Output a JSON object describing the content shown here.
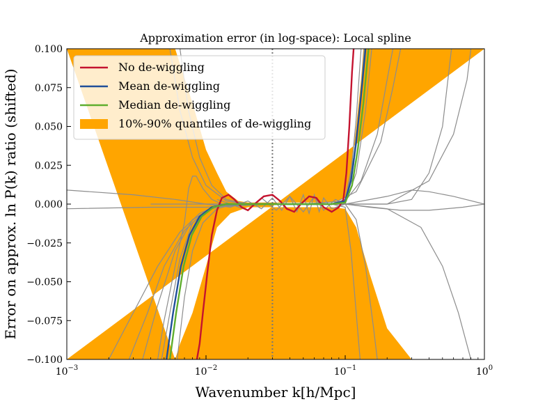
{
  "chart_data": {
    "type": "line",
    "title": "Approximation error (in log-space): Local spline",
    "xlabel": "Wavenumber k[h/Mpc]",
    "ylabel": "Error on approx. ln P(k) ratio (shifted)",
    "xscale": "log",
    "xlim": [
      0.001,
      1
    ],
    "ylim": [
      -0.1,
      0.1
    ],
    "x_ticks": [
      "10^-3",
      "10^-2",
      "10^-1",
      "10^0"
    ],
    "y_ticks": [
      "-0.100",
      "-0.075",
      "-0.050",
      "-0.025",
      "0.000",
      "0.025",
      "0.050",
      "0.075",
      "0.100"
    ],
    "vline_x": 0.03,
    "legend_position": "upper-left",
    "colors": {
      "no_dewiggle": "#c4132f",
      "mean": "#1f4e99",
      "median": "#5fae2e",
      "band": "#ffa500",
      "samples": "#8c8c8c",
      "vline": "#777777"
    },
    "band_upper": [
      [
        0.001,
        0.1
      ],
      [
        0.006,
        0.1
      ],
      [
        0.008,
        0.065
      ],
      [
        0.01,
        0.035
      ],
      [
        0.012,
        0.02
      ],
      [
        0.014,
        0.008
      ],
      [
        0.017,
        0.002
      ],
      [
        0.02,
        0.001
      ],
      [
        0.03,
        0.001
      ],
      [
        0.05,
        0.001
      ],
      [
        0.08,
        0.001
      ],
      [
        0.1,
        0.004
      ],
      [
        0.11,
        0.02
      ],
      [
        0.12,
        0.05
      ],
      [
        0.13,
        0.08
      ],
      [
        0.135,
        0.1
      ],
      [
        1,
        0.1
      ]
    ],
    "band_lower": [
      [
        0.001,
        -0.1
      ],
      [
        1,
        -0.1
      ],
      [
        0.3,
        -0.1
      ],
      [
        0.2,
        -0.08
      ],
      [
        0.15,
        -0.045
      ],
      [
        0.12,
        -0.015
      ],
      [
        0.1,
        -0.003
      ],
      [
        0.08,
        -0.002
      ],
      [
        0.05,
        -0.002
      ],
      [
        0.03,
        -0.002
      ],
      [
        0.02,
        -0.002
      ],
      [
        0.015,
        -0.006
      ],
      [
        0.012,
        -0.015
      ],
      [
        0.01,
        -0.04
      ],
      [
        0.008,
        -0.07
      ],
      [
        0.0065,
        -0.09
      ],
      [
        0.006,
        -0.1
      ]
    ],
    "series": [
      {
        "name": "No de-wiggling",
        "key": "no_dewiggle",
        "points": [
          [
            0.0086,
            -0.1
          ],
          [
            0.009,
            -0.09
          ],
          [
            0.0095,
            -0.07
          ],
          [
            0.0102,
            -0.045
          ],
          [
            0.011,
            -0.02
          ],
          [
            0.012,
            -0.004
          ],
          [
            0.013,
            0.004
          ],
          [
            0.0145,
            0.006
          ],
          [
            0.016,
            0.003
          ],
          [
            0.018,
            -0.002
          ],
          [
            0.02,
            -0.004
          ],
          [
            0.023,
            0.001
          ],
          [
            0.026,
            0.005
          ],
          [
            0.03,
            0.006
          ],
          [
            0.034,
            0.002
          ],
          [
            0.038,
            -0.003
          ],
          [
            0.043,
            -0.005
          ],
          [
            0.048,
            0.0
          ],
          [
            0.055,
            0.005
          ],
          [
            0.062,
            0.004
          ],
          [
            0.07,
            -0.002
          ],
          [
            0.08,
            -0.005
          ],
          [
            0.09,
            -0.002
          ],
          [
            0.097,
            0.003
          ],
          [
            0.102,
            0.02
          ],
          [
            0.107,
            0.05
          ],
          [
            0.112,
            0.085
          ],
          [
            0.115,
            0.1
          ]
        ]
      },
      {
        "name": "Mean de-wiggling",
        "key": "mean",
        "points": [
          [
            0.0052,
            -0.1
          ],
          [
            0.0058,
            -0.07
          ],
          [
            0.0066,
            -0.04
          ],
          [
            0.0076,
            -0.02
          ],
          [
            0.009,
            -0.008
          ],
          [
            0.011,
            -0.002
          ],
          [
            0.014,
            0.0
          ],
          [
            0.02,
            0.0
          ],
          [
            0.03,
            0.0
          ],
          [
            0.05,
            0.0
          ],
          [
            0.08,
            0.0
          ],
          [
            0.1,
            0.002
          ],
          [
            0.11,
            0.015
          ],
          [
            0.12,
            0.04
          ],
          [
            0.13,
            0.07
          ],
          [
            0.14,
            0.1
          ]
        ]
      },
      {
        "name": "Median de-wiggling",
        "key": "median",
        "points": [
          [
            0.0055,
            -0.1
          ],
          [
            0.0061,
            -0.07
          ],
          [
            0.0069,
            -0.04
          ],
          [
            0.0079,
            -0.02
          ],
          [
            0.0093,
            -0.008
          ],
          [
            0.0113,
            -0.002
          ],
          [
            0.014,
            0.0
          ],
          [
            0.02,
            0.0
          ],
          [
            0.03,
            0.0
          ],
          [
            0.05,
            0.0
          ],
          [
            0.08,
            0.0
          ],
          [
            0.1,
            0.001
          ],
          [
            0.112,
            0.012
          ],
          [
            0.123,
            0.035
          ],
          [
            0.135,
            0.065
          ],
          [
            0.147,
            0.1
          ]
        ]
      },
      {
        "name": "10%-90% quantiles of de-wiggling",
        "key": "band"
      }
    ],
    "sample_curves": [
      [
        [
          0.0062,
          -0.1
        ],
        [
          0.007,
          -0.06
        ],
        [
          0.008,
          -0.03
        ],
        [
          0.0095,
          -0.012
        ],
        [
          0.012,
          -0.003
        ],
        [
          0.016,
          0.0
        ],
        [
          0.03,
          0.0
        ],
        [
          0.08,
          0.0
        ],
        [
          0.1,
          0.003
        ],
        [
          0.115,
          0.03
        ],
        [
          0.13,
          0.07
        ],
        [
          0.14,
          0.1
        ]
      ],
      [
        [
          0.0048,
          -0.1
        ],
        [
          0.0055,
          -0.07
        ],
        [
          0.0065,
          -0.035
        ],
        [
          0.008,
          -0.012
        ],
        [
          0.011,
          -0.002
        ],
        [
          0.02,
          0.0
        ],
        [
          0.06,
          0.0
        ],
        [
          0.1,
          0.0
        ],
        [
          0.12,
          0.02
        ],
        [
          0.14,
          0.06
        ],
        [
          0.155,
          0.1
        ]
      ],
      [
        [
          0.002,
          -0.1
        ],
        [
          0.003,
          -0.07
        ],
        [
          0.0045,
          -0.04
        ],
        [
          0.0065,
          -0.018
        ],
        [
          0.009,
          -0.006
        ],
        [
          0.012,
          -0.001
        ],
        [
          0.02,
          0.0
        ],
        [
          0.08,
          0.0
        ],
        [
          0.12,
          0.008
        ],
        [
          0.18,
          0.04
        ],
        [
          0.22,
          0.075
        ],
        [
          0.25,
          0.1
        ]
      ],
      [
        [
          0.0028,
          -0.1
        ],
        [
          0.0038,
          -0.07
        ],
        [
          0.005,
          -0.04
        ],
        [
          0.007,
          -0.017
        ],
        [
          0.01,
          -0.004
        ],
        [
          0.015,
          0.0
        ],
        [
          0.05,
          0.0
        ],
        [
          0.1,
          0.002
        ],
        [
          0.13,
          0.015
        ],
        [
          0.17,
          0.045
        ],
        [
          0.2,
          0.08
        ],
        [
          0.22,
          0.1
        ]
      ],
      [
        [
          0.0035,
          -0.1
        ],
        [
          0.0045,
          -0.065
        ],
        [
          0.006,
          -0.03
        ],
        [
          0.008,
          -0.01
        ],
        [
          0.012,
          -0.001
        ],
        [
          0.03,
          0.0
        ],
        [
          0.1,
          0.0
        ],
        [
          0.12,
          -0.01
        ],
        [
          0.14,
          -0.04
        ],
        [
          0.16,
          -0.08
        ],
        [
          0.17,
          -0.1
        ]
      ],
      [
        [
          0.0045,
          -0.1
        ],
        [
          0.005,
          -0.075
        ],
        [
          0.006,
          -0.04
        ],
        [
          0.007,
          -0.012
        ],
        [
          0.0075,
          0.01
        ],
        [
          0.008,
          0.018
        ],
        [
          0.0085,
          0.018
        ],
        [
          0.0095,
          0.01
        ],
        [
          0.011,
          0.003
        ],
        [
          0.013,
          0.0
        ],
        [
          0.03,
          0.0
        ],
        [
          0.08,
          0.0
        ],
        [
          0.1,
          0.0
        ],
        [
          0.11,
          0.02
        ],
        [
          0.12,
          0.055
        ],
        [
          0.13,
          0.1
        ]
      ],
      [
        [
          0.0055,
          0.1
        ],
        [
          0.0065,
          0.06
        ],
        [
          0.008,
          0.03
        ],
        [
          0.01,
          0.012
        ],
        [
          0.014,
          0.002
        ],
        [
          0.02,
          0.0
        ],
        [
          0.08,
          0.0
        ],
        [
          0.1,
          0.001
        ],
        [
          0.115,
          0.025
        ],
        [
          0.128,
          0.065
        ],
        [
          0.137,
          0.1
        ]
      ],
      [
        [
          0.0065,
          0.1
        ],
        [
          0.0075,
          0.06
        ],
        [
          0.009,
          0.03
        ],
        [
          0.011,
          0.012
        ],
        [
          0.014,
          0.003
        ],
        [
          0.02,
          0.0
        ],
        [
          0.08,
          0.0
        ],
        [
          0.1,
          -0.002
        ],
        [
          0.11,
          -0.03
        ],
        [
          0.12,
          -0.07
        ],
        [
          0.128,
          -0.1
        ]
      ],
      [
        [
          0.001,
          0.009
        ],
        [
          0.003,
          0.006
        ],
        [
          0.006,
          0.003
        ],
        [
          0.01,
          0.0
        ],
        [
          0.03,
          0.0
        ],
        [
          0.1,
          0.0
        ],
        [
          0.2,
          0.005
        ],
        [
          0.3,
          0.009
        ],
        [
          0.4,
          0.008
        ],
        [
          0.6,
          0.005
        ],
        [
          1.0,
          0.0
        ]
      ],
      [
        [
          0.001,
          -0.003
        ],
        [
          0.004,
          -0.002
        ],
        [
          0.01,
          -0.002
        ],
        [
          0.03,
          0.0
        ],
        [
          0.1,
          0.0
        ],
        [
          0.15,
          -0.002
        ],
        [
          0.25,
          -0.004
        ],
        [
          0.4,
          -0.004
        ],
        [
          0.7,
          -0.002
        ],
        [
          1.0,
          0.0
        ]
      ],
      [
        [
          0.01,
          0.0
        ],
        [
          0.015,
          -0.002
        ],
        [
          0.02,
          0.002
        ],
        [
          0.025,
          -0.003
        ],
        [
          0.03,
          0.004
        ],
        [
          0.035,
          -0.004
        ],
        [
          0.04,
          0.005
        ],
        [
          0.045,
          -0.005
        ],
        [
          0.05,
          0.006
        ],
        [
          0.055,
          -0.006
        ],
        [
          0.06,
          0.006
        ],
        [
          0.065,
          -0.005
        ],
        [
          0.07,
          0.004
        ],
        [
          0.08,
          -0.003
        ],
        [
          0.1,
          0.0
        ]
      ],
      [
        [
          0.012,
          0.003
        ],
        [
          0.02,
          -0.004
        ],
        [
          0.025,
          0.004
        ],
        [
          0.032,
          -0.004
        ],
        [
          0.04,
          0.005
        ],
        [
          0.05,
          -0.005
        ],
        [
          0.06,
          0.005
        ],
        [
          0.07,
          -0.004
        ],
        [
          0.085,
          0.003
        ],
        [
          0.1,
          0.0
        ]
      ],
      [
        [
          0.004,
          0.0
        ],
        [
          0.008,
          0.0
        ],
        [
          0.01,
          0.0
        ],
        [
          0.1,
          0.0
        ],
        [
          0.2,
          0.0
        ],
        [
          0.4,
          0.015
        ],
        [
          0.6,
          0.045
        ],
        [
          0.75,
          0.08
        ],
        [
          0.8,
          0.1
        ]
      ],
      [
        [
          0.1,
          0.0
        ],
        [
          0.2,
          -0.003
        ],
        [
          0.35,
          -0.015
        ],
        [
          0.5,
          -0.04
        ],
        [
          0.65,
          -0.07
        ],
        [
          0.8,
          -0.1
        ]
      ],
      [
        [
          0.1,
          0.0
        ],
        [
          0.2,
          0.0
        ],
        [
          0.3,
          0.003
        ],
        [
          0.4,
          0.02
        ],
        [
          0.5,
          0.05
        ],
        [
          0.58,
          0.1
        ]
      ]
    ]
  }
}
